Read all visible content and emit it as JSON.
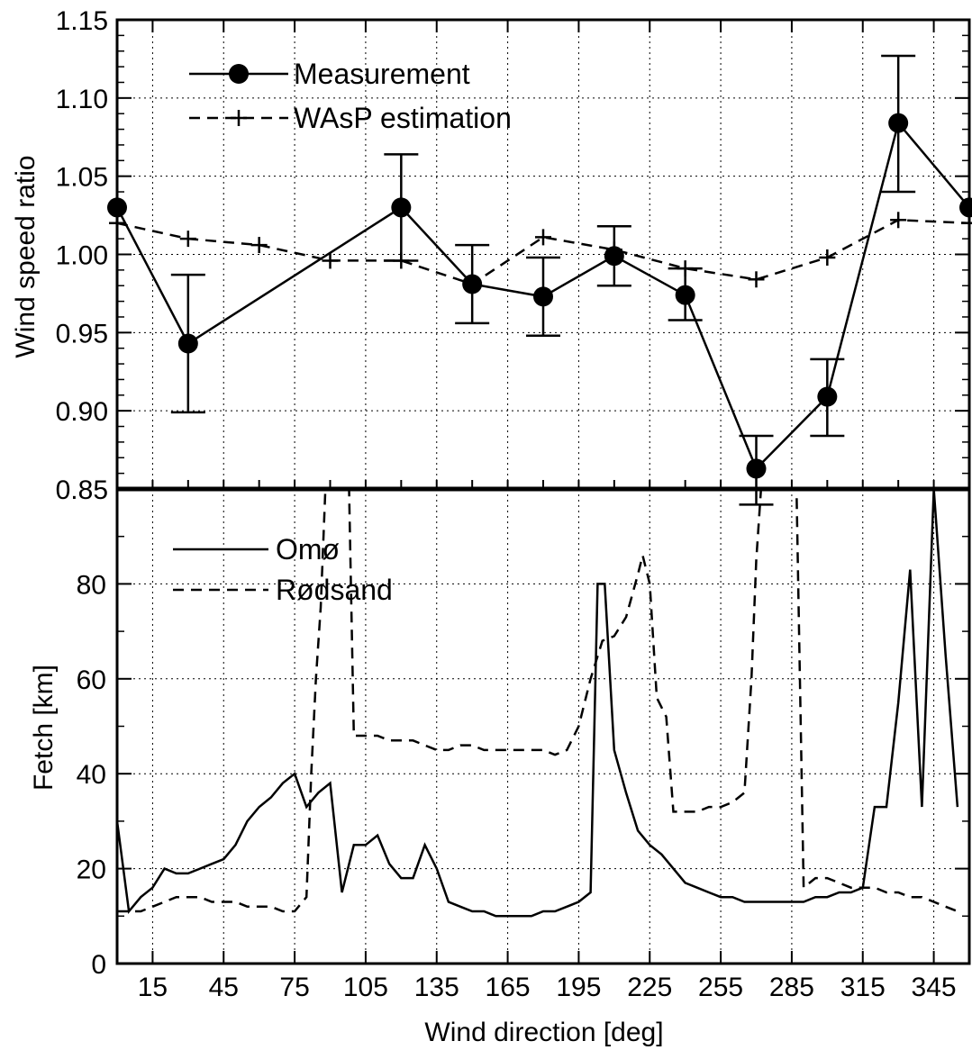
{
  "chart_data": [
    {
      "type": "line",
      "ylabel": "Wind speed ratio",
      "xlim": [
        0,
        360
      ],
      "ylim": [
        0.85,
        1.15
      ],
      "yticks": [
        "0.85",
        "0.90",
        "0.95",
        "1.00",
        "1.05",
        "1.10",
        "1.15"
      ],
      "grid": true,
      "legend_position": "top-left",
      "series": [
        {
          "name": "Measurement",
          "style": "solid-circle",
          "x": [
            0,
            30,
            120,
            150,
            180,
            210,
            240,
            270,
            300,
            330,
            360
          ],
          "y": [
            1.03,
            0.943,
            1.03,
            0.981,
            0.973,
            0.999,
            0.974,
            0.863,
            0.909,
            1.084,
            1.03
          ],
          "error_low": [
            null,
            0.899,
            0.996,
            0.956,
            0.948,
            0.98,
            0.958,
            0.84,
            0.884,
            1.04,
            null
          ],
          "error_high": [
            null,
            0.987,
            1.064,
            1.006,
            0.998,
            1.018,
            0.991,
            0.884,
            0.933,
            1.127,
            null
          ]
        },
        {
          "name": "WAsP estimation",
          "style": "dashed-plus",
          "x": [
            0,
            30,
            60,
            90,
            120,
            150,
            180,
            210,
            240,
            270,
            300,
            330,
            360
          ],
          "y": [
            1.02,
            1.01,
            1.006,
            0.996,
            0.996,
            0.981,
            1.011,
            1.003,
            0.991,
            0.984,
            0.998,
            1.022,
            1.02
          ]
        }
      ]
    },
    {
      "type": "line",
      "xlabel": "Wind direction [deg]",
      "ylabel": "Fetch [km]",
      "xlim": [
        0,
        360
      ],
      "ylim": [
        0,
        100
      ],
      "xticks": [
        "15",
        "45",
        "75",
        "105",
        "135",
        "165",
        "195",
        "225",
        "255",
        "285",
        "315",
        "345"
      ],
      "yticks": [
        "0",
        "20",
        "40",
        "60",
        "80"
      ],
      "grid": true,
      "legend_position": "top-left",
      "series": [
        {
          "name": "Omø",
          "style": "solid",
          "x": [
            0,
            5,
            10,
            15,
            20,
            25,
            30,
            35,
            40,
            45,
            50,
            55,
            60,
            65,
            70,
            75,
            80,
            85,
            90,
            95,
            100,
            105,
            110,
            115,
            120,
            125,
            130,
            135,
            140,
            145,
            150,
            155,
            160,
            165,
            170,
            175,
            180,
            185,
            190,
            195,
            200,
            203,
            206,
            210,
            215,
            220,
            225,
            230,
            235,
            240,
            245,
            250,
            255,
            260,
            265,
            270,
            275,
            280,
            285,
            290,
            295,
            300,
            305,
            310,
            315,
            320,
            325,
            330,
            335,
            340,
            345,
            350,
            355
          ],
          "y": [
            30,
            11,
            14,
            16,
            20,
            19,
            19,
            20,
            21,
            22,
            25,
            30,
            33,
            35,
            38,
            40,
            33,
            36,
            38,
            15,
            25,
            25,
            27,
            21,
            18,
            18,
            25,
            20,
            13,
            12,
            11,
            11,
            10,
            10,
            10,
            10,
            11,
            11,
            12,
            13,
            15,
            80,
            80,
            45,
            36,
            28,
            25,
            23,
            20,
            17,
            16,
            15,
            14,
            14,
            13,
            13,
            13,
            13,
            13,
            13,
            14,
            14,
            15,
            15,
            16,
            33,
            33,
            55,
            83,
            33,
            100,
            65,
            33
          ]
        },
        {
          "name": "Rødsand",
          "style": "dashed",
          "x": [
            0,
            5,
            10,
            15,
            20,
            25,
            30,
            35,
            40,
            45,
            50,
            55,
            60,
            65,
            70,
            75,
            80,
            82,
            84,
            86,
            88,
            90,
            92,
            94,
            96,
            98,
            100,
            105,
            110,
            115,
            120,
            125,
            130,
            135,
            140,
            145,
            150,
            155,
            160,
            165,
            170,
            175,
            180,
            185,
            190,
            195,
            200,
            205,
            210,
            215,
            220,
            222,
            225,
            228,
            232,
            235,
            240,
            245,
            250,
            255,
            260,
            265,
            268,
            270,
            272,
            275,
            280,
            285,
            287,
            290,
            295,
            300,
            305,
            310,
            315,
            320,
            325,
            330,
            335,
            340,
            345,
            350,
            355
          ],
          "y": [
            11,
            11,
            11,
            12,
            13,
            14,
            14,
            14,
            13,
            13,
            13,
            12,
            12,
            12,
            11,
            11,
            14,
            40,
            60,
            75,
            100,
            100,
            100,
            100,
            100,
            100,
            48,
            48,
            48,
            47,
            47,
            47,
            46,
            45,
            45,
            46,
            46,
            45,
            45,
            45,
            45,
            45,
            45,
            44,
            45,
            50,
            60,
            68,
            69,
            73,
            82,
            86,
            80,
            56,
            52,
            32,
            32,
            32,
            33,
            33,
            34,
            36,
            60,
            85,
            100,
            100,
            100,
            100,
            100,
            16,
            18,
            18,
            17,
            16,
            16,
            16,
            15,
            15,
            14,
            14,
            13,
            12,
            11
          ]
        }
      ]
    }
  ]
}
